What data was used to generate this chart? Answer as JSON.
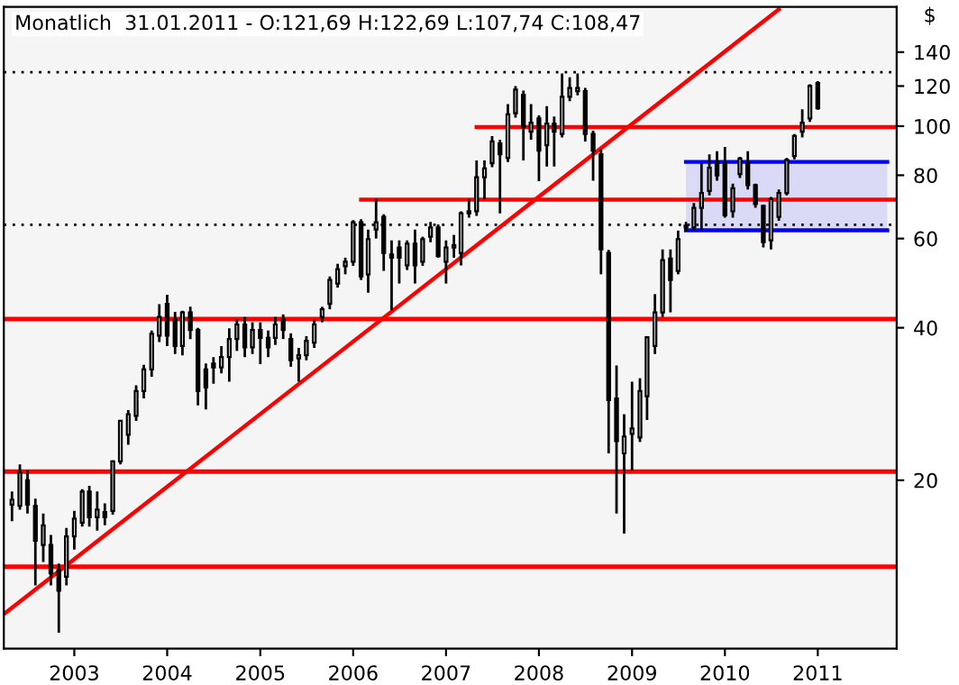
{
  "chart_data": {
    "type": "candlestick",
    "title": "Monatlich  31.01.2011 - O:121,69 H:122,69 L:107,74 C:108,47",
    "ylabel": "$",
    "x": [
      "2002-05",
      "2002-06",
      "2002-07",
      "2002-08",
      "2002-09",
      "2002-10",
      "2002-11",
      "2002-12",
      "2003-01",
      "2003-02",
      "2003-03",
      "2003-04",
      "2003-05",
      "2003-06",
      "2003-07",
      "2003-08",
      "2003-09",
      "2003-10",
      "2003-11",
      "2003-12",
      "2004-01",
      "2004-02",
      "2004-03",
      "2004-04",
      "2004-05",
      "2004-06",
      "2004-07",
      "2004-08",
      "2004-09",
      "2004-10",
      "2004-11",
      "2004-12",
      "2005-01",
      "2005-02",
      "2005-03",
      "2005-04",
      "2005-05",
      "2005-06",
      "2005-07",
      "2005-08",
      "2005-09",
      "2005-10",
      "2005-11",
      "2005-12",
      "2006-01",
      "2006-02",
      "2006-03",
      "2006-04",
      "2006-05",
      "2006-06",
      "2006-07",
      "2006-08",
      "2006-09",
      "2006-10",
      "2006-11",
      "2006-12",
      "2007-01",
      "2007-02",
      "2007-03",
      "2007-04",
      "2007-05",
      "2007-06",
      "2007-07",
      "2007-08",
      "2007-09",
      "2007-10",
      "2007-11",
      "2007-12",
      "2008-01",
      "2008-02",
      "2008-03",
      "2008-04",
      "2008-05",
      "2008-06",
      "2008-07",
      "2008-08",
      "2008-09",
      "2008-10",
      "2008-11",
      "2008-12",
      "2009-01",
      "2009-02",
      "2009-03",
      "2009-04",
      "2009-05",
      "2009-06",
      "2009-07",
      "2009-08",
      "2009-09",
      "2009-10",
      "2009-11",
      "2009-12",
      "2010-01",
      "2010-02",
      "2010-03",
      "2010-04",
      "2010-05",
      "2010-06",
      "2010-07",
      "2010-08",
      "2010-09",
      "2010-10",
      "2010-11",
      "2010-12",
      "2011-01"
    ],
    "ohlc": [
      [
        17.9,
        19.0,
        16.6,
        18.3
      ],
      [
        17.8,
        21.5,
        17.5,
        20.7
      ],
      [
        20.0,
        20.9,
        17.2,
        17.9
      ],
      [
        17.8,
        18.4,
        12.4,
        15.2
      ],
      [
        14.9,
        17.2,
        13.8,
        16.3
      ],
      [
        14.9,
        15.6,
        12.4,
        13.1
      ],
      [
        13.3,
        13.7,
        10.0,
        12.1
      ],
      [
        12.9,
        16.1,
        12.4,
        15.5
      ],
      [
        15.5,
        17.4,
        14.6,
        16.8
      ],
      [
        16.5,
        19.2,
        16.2,
        19.0
      ],
      [
        19.0,
        19.5,
        16.2,
        16.9
      ],
      [
        16.9,
        19.0,
        15.9,
        17.5
      ],
      [
        17.3,
        18.0,
        16.3,
        16.9
      ],
      [
        17.4,
        21.9,
        17.1,
        21.8
      ],
      [
        21.8,
        26.3,
        21.5,
        26.2
      ],
      [
        24.6,
        27.5,
        23.5,
        27.0
      ],
      [
        26.8,
        30.8,
        26.2,
        30.0
      ],
      [
        30.0,
        33.8,
        29.0,
        33.1
      ],
      [
        33.1,
        39.5,
        32.0,
        38.9
      ],
      [
        38.6,
        44.5,
        37.5,
        42.0
      ],
      [
        44.6,
        46.5,
        36.8,
        38.6
      ],
      [
        41.6,
        43.0,
        35.5,
        36.8
      ],
      [
        36.8,
        43.2,
        35.3,
        42.9
      ],
      [
        42.9,
        44.0,
        38.0,
        39.6
      ],
      [
        39.6,
        40.0,
        28.1,
        30.0
      ],
      [
        33.1,
        34.0,
        27.6,
        30.5
      ],
      [
        34.0,
        35.0,
        31.0,
        33.4
      ],
      [
        33.4,
        36.8,
        32.5,
        35.0
      ],
      [
        35.0,
        39.9,
        31.3,
        38.0
      ],
      [
        38.0,
        41.6,
        36.0,
        40.6
      ],
      [
        40.6,
        42.0,
        35.0,
        36.6
      ],
      [
        36.6,
        41.0,
        35.5,
        39.6
      ],
      [
        39.6,
        41.0,
        33.9,
        38.2
      ],
      [
        38.2,
        39.5,
        35.0,
        36.6
      ],
      [
        38.2,
        42.0,
        37.0,
        40.6
      ],
      [
        41.6,
        42.5,
        38.0,
        39.6
      ],
      [
        38.0,
        39.0,
        33.5,
        34.5
      ],
      [
        34.8,
        36.5,
        31.3,
        35.3
      ],
      [
        35.3,
        38.5,
        34.5,
        37.7
      ],
      [
        37.4,
        41.5,
        36.5,
        40.6
      ],
      [
        42.0,
        44.0,
        41.0,
        43.5
      ],
      [
        44.6,
        50.5,
        43.5,
        49.7
      ],
      [
        48.9,
        53.5,
        48.0,
        52.2
      ],
      [
        52.9,
        55.0,
        51.0,
        54.0
      ],
      [
        54.0,
        65.2,
        53.0,
        64.6
      ],
      [
        64.6,
        65.5,
        49.7,
        50.5
      ],
      [
        51.0,
        62.5,
        46.9,
        59.8
      ],
      [
        62.5,
        71.8,
        60.0,
        64.6
      ],
      [
        66.2,
        67.0,
        51.8,
        56.2
      ],
      [
        55.8,
        59.5,
        43.3,
        55.0
      ],
      [
        57.6,
        59.5,
        48.9,
        55.0
      ],
      [
        53.1,
        59.5,
        52.0,
        58.6
      ],
      [
        58.6,
        62.5,
        48.9,
        53.1
      ],
      [
        54.0,
        60.5,
        53.0,
        59.8
      ],
      [
        60.5,
        64.7,
        59.0,
        63.1
      ],
      [
        63.1,
        64.0,
        55.0,
        55.4
      ],
      [
        54.0,
        59.5,
        48.9,
        57.6
      ],
      [
        57.6,
        61.0,
        55.0,
        58.2
      ],
      [
        56.2,
        67.9,
        53.1,
        67.3
      ],
      [
        67.3,
        71.8,
        66.0,
        67.9
      ],
      [
        67.9,
        85.6,
        66.5,
        79.3
      ],
      [
        79.3,
        85.6,
        71.8,
        82.5
      ],
      [
        84.5,
        95.6,
        83.0,
        93.3
      ],
      [
        92.5,
        94.0,
        67.3,
        88.0
      ],
      [
        86.6,
        110.6,
        85.0,
        105.5
      ],
      [
        106.1,
        120.0,
        104.0,
        118.1
      ],
      [
        115.3,
        117.5,
        85.6,
        99.5
      ],
      [
        97.5,
        110.6,
        94.0,
        101.6
      ],
      [
        103.6,
        105.0,
        77.9,
        89.5
      ],
      [
        91.7,
        109.5,
        83.2,
        101.2
      ],
      [
        101.2,
        104.5,
        83.2,
        97.5
      ],
      [
        96.5,
        127.1,
        95.0,
        114.3
      ],
      [
        114.3,
        124.9,
        112.0,
        119.0
      ],
      [
        117.2,
        127.1,
        115.0,
        119.0
      ],
      [
        117.2,
        119.0,
        93.3,
        96.5
      ],
      [
        96.5,
        98.0,
        78.0,
        89.5
      ],
      [
        88.0,
        90.0,
        51.0,
        57.1
      ],
      [
        56.2,
        57.0,
        22.6,
        28.8
      ],
      [
        29.0,
        33.7,
        17.2,
        23.9
      ],
      [
        22.6,
        27.0,
        15.7,
        24.4
      ],
      [
        24.7,
        31.3,
        20.9,
        25.3
      ],
      [
        24.3,
        31.8,
        23.8,
        30.0
      ],
      [
        29.3,
        38.5,
        26.3,
        38.3
      ],
      [
        36.8,
        46.6,
        35.5,
        42.9
      ],
      [
        42.9,
        57.1,
        42.0,
        54.4
      ],
      [
        54.8,
        57.1,
        42.9,
        49.7
      ],
      [
        51.8,
        62.2,
        51.0,
        59.8
      ],
      [
        63.1,
        64.7,
        62.0,
        63.6
      ],
      [
        63.1,
        70.5,
        62.2,
        69.0
      ],
      [
        69.0,
        84.5,
        62.5,
        73.8
      ],
      [
        74.5,
        88.0,
        73.0,
        82.8
      ],
      [
        85.2,
        89.2,
        78.0,
        79.9
      ],
      [
        84.5,
        91.0,
        66.0,
        66.7
      ],
      [
        67.9,
        77.0,
        66.0,
        75.4
      ],
      [
        80.4,
        87.0,
        79.0,
        86.3
      ],
      [
        84.5,
        89.2,
        75.0,
        76.5
      ],
      [
        76.5,
        77.0,
        69.0,
        70.2
      ],
      [
        69.6,
        70.0,
        57.6,
        59.0
      ],
      [
        59.5,
        72.5,
        57.1,
        71.8
      ],
      [
        66.2,
        75.0,
        65.0,
        73.8
      ],
      [
        73.8,
        86.5,
        73.0,
        85.8
      ],
      [
        87.3,
        96.5,
        86.0,
        95.6
      ],
      [
        97.5,
        108.0,
        95.0,
        101.6
      ],
      [
        103.6,
        121.0,
        102.0,
        120.0
      ],
      [
        121.69,
        122.69,
        107.74,
        108.47
      ]
    ],
    "series": [
      {
        "type": "line",
        "color": "#ff0000",
        "x": [
          "2002-04",
          "2010-08"
        ],
        "values": [
          10.9,
          170
        ]
      },
      {
        "type": "line",
        "color": "#ff0000",
        "x": [
          "2007-05",
          "2011-11-07"
        ],
        "values": [
          99.6,
          99.6
        ]
      },
      {
        "type": "line",
        "color": "#ff0000",
        "x": [
          "2006-02",
          "2011-11-07"
        ],
        "values": [
          71.6,
          71.6
        ]
      },
      {
        "type": "line",
        "color": "#0000ff",
        "x": [
          "2009-08",
          "2011-10"
        ],
        "values": [
          85,
          85
        ]
      },
      {
        "type": "line",
        "color": "#0000ff",
        "x": [
          "2009-08",
          "2011-10"
        ],
        "values": [
          62.3,
          62.3
        ]
      }
    ],
    "bands": [
      {
        "axis": "y",
        "from": 62.3,
        "to": 85,
        "color": "#0000ff"
      }
    ],
    "ref_lines": [
      {
        "axis": "y",
        "value": 127.8,
        "color": "#000000",
        "line_style": "dotted"
      },
      {
        "axis": "y",
        "value": 63.9,
        "color": "#000000",
        "line_style": "dotted"
      },
      {
        "axis": "y",
        "value": 41.6,
        "color": "#ff0000",
        "line_style": "solid"
      },
      {
        "axis": "y",
        "value": 20.8,
        "color": "#ff0000",
        "line_style": "solid"
      },
      {
        "axis": "y",
        "value": 13.5,
        "color": "#ff0000",
        "line_style": "solid"
      }
    ],
    "log": "y",
    "xlim": [
      "2002-03-30",
      "2011-11-07"
    ],
    "xticks": [
      {
        "value": "2003",
        "label": "2003"
      },
      {
        "value": "2004",
        "label": "2004"
      },
      {
        "value": "2005",
        "label": "2005"
      },
      {
        "value": "2006",
        "label": "2006"
      },
      {
        "value": "2007",
        "label": "2007"
      },
      {
        "value": "2008",
        "label": "2008"
      },
      {
        "value": "2009",
        "label": "2009"
      },
      {
        "value": "2010",
        "label": "2010"
      },
      {
        "value": "2011",
        "label": "2011"
      }
    ],
    "ylim": [
      9.3,
      172
    ],
    "yticks": [
      20,
      40,
      60,
      80,
      100,
      120,
      140
    ],
    "grid": false
  }
}
